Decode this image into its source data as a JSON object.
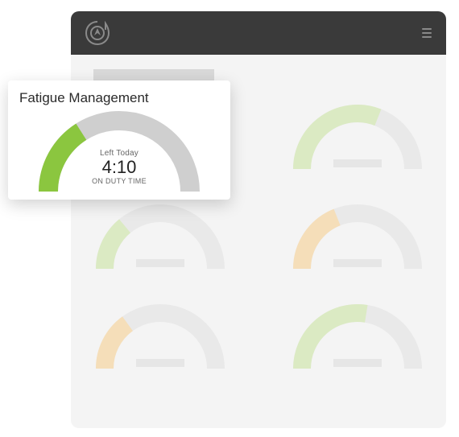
{
  "topbar": {
    "background_color": "#3a3a3a",
    "logo_color": "#8a8a8a",
    "hamburger_color": "#8a8a8a"
  },
  "app_background": "#f4f4f4",
  "background_gauges": {
    "track_color": "#e9e9e9",
    "tile_skel_color": "#e6e6e6",
    "stroke_width": 22,
    "items": [
      {
        "fill_percent": 40,
        "fill_color": "#dbeac3"
      },
      {
        "fill_percent": 62,
        "fill_color": "#dbeac3"
      },
      {
        "fill_percent": 28,
        "fill_color": "#dbeac3"
      },
      {
        "fill_percent": 38,
        "fill_color": "#f5deb9"
      },
      {
        "fill_percent": 30,
        "fill_color": "#f5deb9"
      },
      {
        "fill_percent": 55,
        "fill_color": "#dbeac3"
      }
    ]
  },
  "card": {
    "title": "Fatigue Management",
    "left_today_label": "Left Today",
    "time_value": "4:10",
    "duty_label": "ON DUTY TIME",
    "gauge": {
      "fill_percent": 32,
      "fill_color": "#8bc63f",
      "track_color": "#cfcfcf",
      "stroke_width": 24
    }
  }
}
